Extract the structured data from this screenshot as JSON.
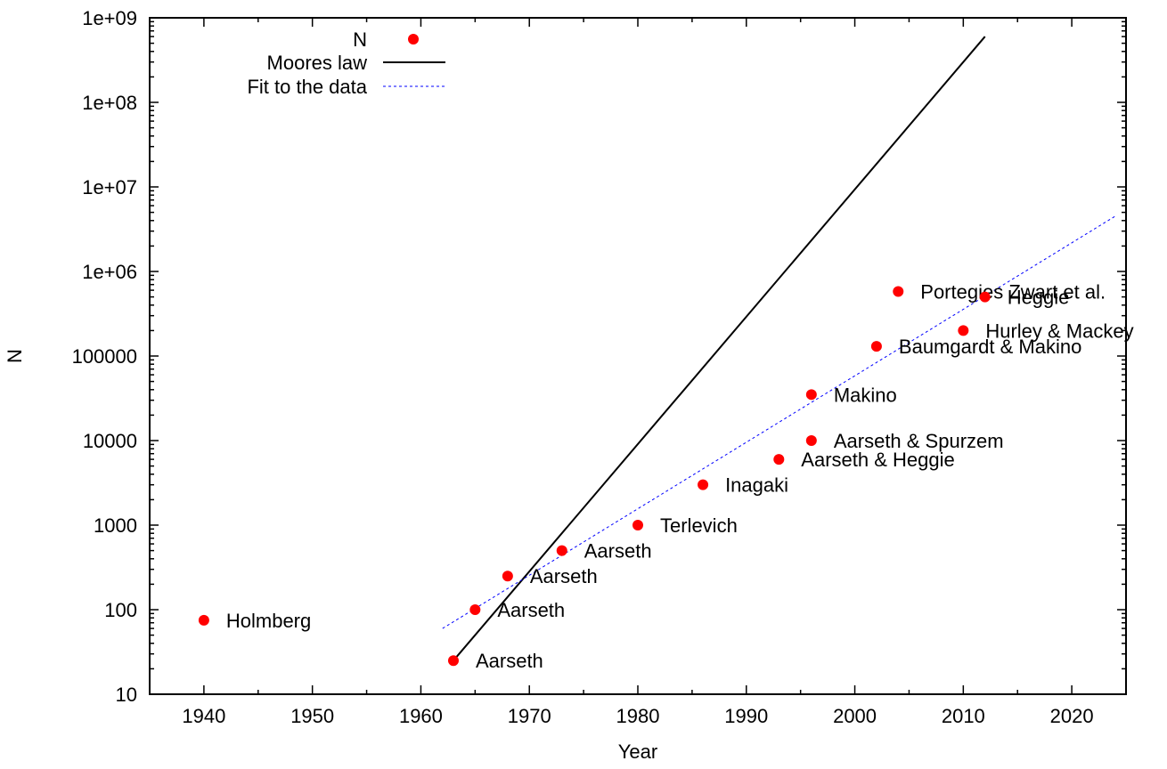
{
  "chart_data": {
    "type": "scatter",
    "xlabel": "Year",
    "ylabel": "N",
    "xlim": [
      1935,
      2025
    ],
    "ylim": [
      10,
      1000000000
    ],
    "yscale": "log",
    "xticks": [
      1940,
      1950,
      1960,
      1970,
      1980,
      1990,
      2000,
      2010,
      2020
    ],
    "yticks": [
      {
        "value": 10,
        "label": "10"
      },
      {
        "value": 100,
        "label": "100"
      },
      {
        "value": 1000,
        "label": "1000"
      },
      {
        "value": 10000,
        "label": "10000"
      },
      {
        "value": 100000,
        "label": "100000"
      },
      {
        "value": 1000000,
        "label": "1e+06"
      },
      {
        "value": 10000000,
        "label": "1e+07"
      },
      {
        "value": 100000000,
        "label": "1e+08"
      },
      {
        "value": 1000000000,
        "label": "1e+09"
      }
    ],
    "grid": false,
    "legend_position": "top-left",
    "series": [
      {
        "name": "N",
        "kind": "points",
        "color": "#ff0000",
        "points": [
          {
            "x": 1940,
            "y": 75,
            "label": "Holmberg"
          },
          {
            "x": 1963,
            "y": 25,
            "label": "Aarseth"
          },
          {
            "x": 1965,
            "y": 100,
            "label": "Aarseth"
          },
          {
            "x": 1968,
            "y": 250,
            "label": "Aarseth"
          },
          {
            "x": 1973,
            "y": 500,
            "label": "Aarseth"
          },
          {
            "x": 1980,
            "y": 1000,
            "label": "Terlevich"
          },
          {
            "x": 1986,
            "y": 3000,
            "label": "Inagaki"
          },
          {
            "x": 1993,
            "y": 6000,
            "label": "Aarseth & Heggie"
          },
          {
            "x": 1996,
            "y": 10000,
            "label": "Aarseth & Spurzem"
          },
          {
            "x": 1996,
            "y": 35000,
            "label": "Makino"
          },
          {
            "x": 2002,
            "y": 130000,
            "label": "Baumgardt & Makino"
          },
          {
            "x": 2004,
            "y": 580000,
            "label": "Portegies Zwart et al."
          },
          {
            "x": 2010,
            "y": 200000,
            "label": "Hurley & Mackey"
          },
          {
            "x": 2012,
            "y": 500000,
            "label": "Heggie"
          }
        ]
      },
      {
        "name": "Moores law",
        "kind": "line",
        "color": "#000000",
        "x": [
          1963,
          2012
        ],
        "y": [
          25,
          600000000
        ]
      },
      {
        "name": "Fit to the data",
        "kind": "dashed-line",
        "color": "#0000ff",
        "x": [
          1962,
          2024
        ],
        "y": [
          60,
          4500000
        ]
      }
    ]
  }
}
